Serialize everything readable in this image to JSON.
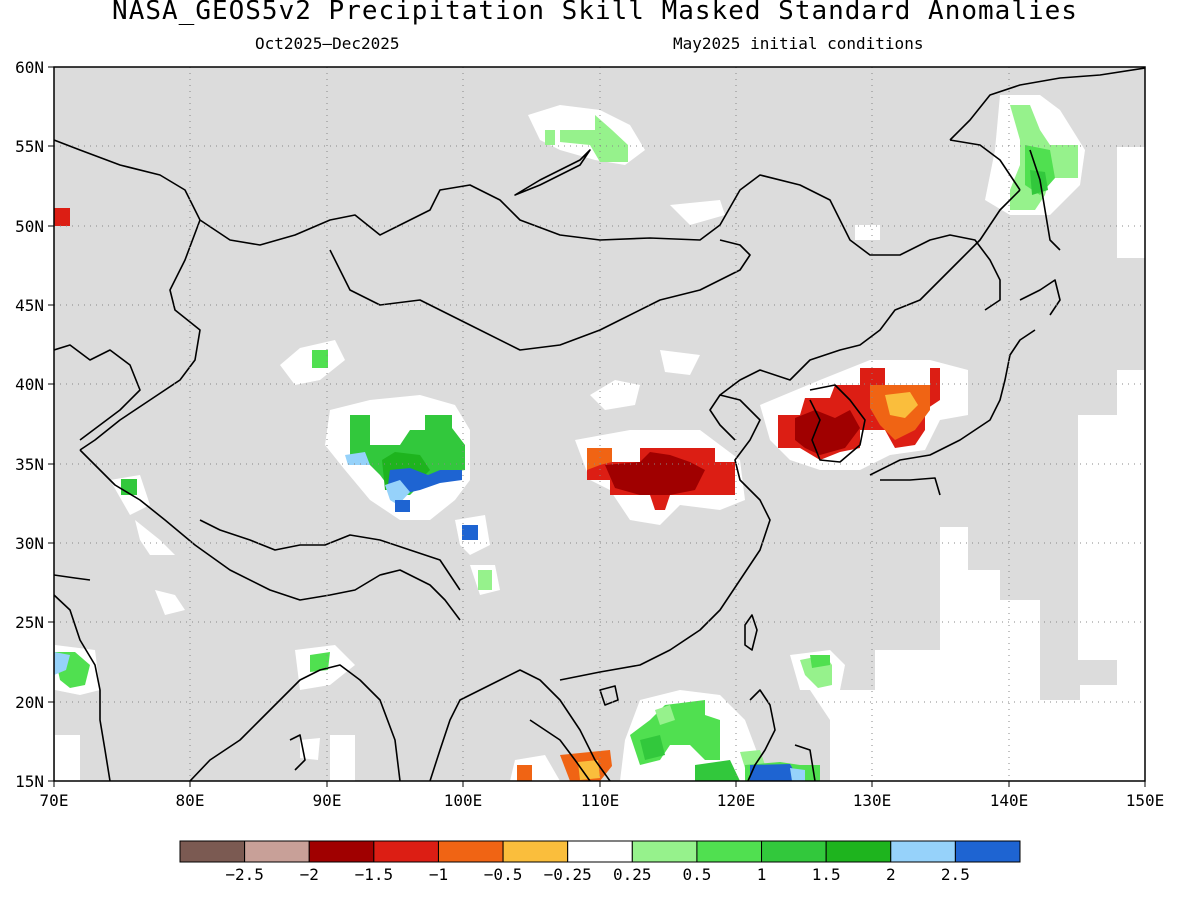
{
  "title": "NASA_GEOS5v2 Precipitation Skill Masked Standard Anomalies",
  "subtitle_left": "Oct2025–Dec2025",
  "subtitle_right": "May2025 initial conditions",
  "map": {
    "lon_range": [
      70,
      150
    ],
    "lat_range": [
      15,
      60
    ],
    "lon_ticks": [
      "70E",
      "80E",
      "90E",
      "100E",
      "110E",
      "120E",
      "130E",
      "140E",
      "150E"
    ],
    "lat_ticks": [
      "15N",
      "20N",
      "25N",
      "30N",
      "35N",
      "40N",
      "45N",
      "50N",
      "55N",
      "60N"
    ],
    "land_fill": "#dcdcdc",
    "grid": "dotted"
  },
  "colorbar": {
    "colors": [
      "#7b5a52",
      "#c8a098",
      "#a00000",
      "#dc1e14",
      "#f06414",
      "#fabe3c",
      "#ffffff",
      "#96f28c",
      "#50e050",
      "#32c83c",
      "#1eb41e",
      "#96d2fa",
      "#1e64d2"
    ],
    "labels": [
      "−2.5",
      "−2",
      "−1.5",
      "−1",
      "−0.5",
      "−0.25",
      "0.25",
      "0.5",
      "1",
      "1.5",
      "2",
      "2.5"
    ]
  }
}
